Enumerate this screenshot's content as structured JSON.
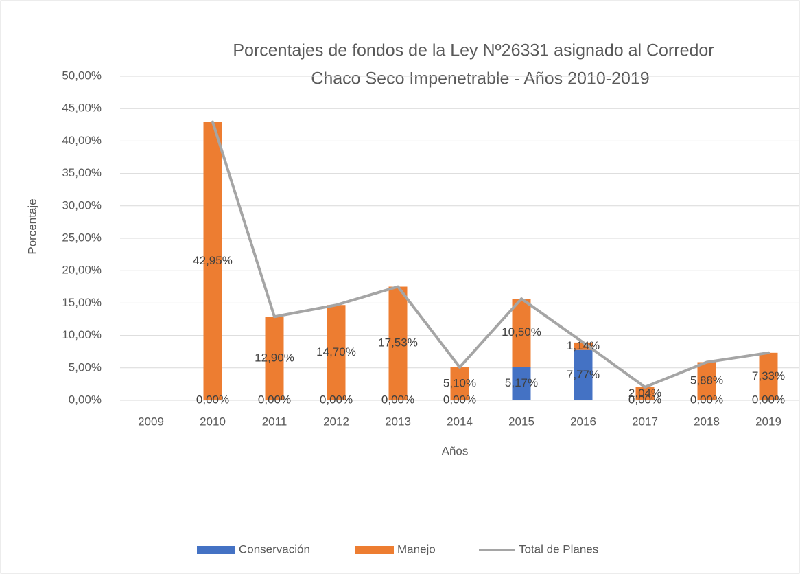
{
  "chart_data": {
    "type": "stacked-bar-line",
    "title": [
      "Porcentajes de fondos de la Ley Nº26331 asignado al Corredor",
      "Chaco Seco Impenetrable -  Años 2010-2019"
    ],
    "x_label": "Años",
    "y_label": "Porcentaje",
    "categories": [
      "2009",
      "2010",
      "2011",
      "2012",
      "2013",
      "2014",
      "2015",
      "2016",
      "2017",
      "2018",
      "2019"
    ],
    "series": [
      {
        "name": "Conservación",
        "kind": "bar",
        "color": "#4472c4",
        "values": [
          null,
          0,
          0,
          0,
          0,
          0,
          5.17,
          7.77,
          0,
          0,
          0
        ],
        "value_labels": [
          null,
          "0,00%",
          "0,00%",
          "0,00%",
          "0,00%",
          "0,00%",
          "5,17%",
          "7,77%",
          "0,00%",
          "0,00%",
          "0,00%"
        ]
      },
      {
        "name": "Manejo",
        "kind": "bar",
        "color": "#ed7d31",
        "values": [
          null,
          42.95,
          12.9,
          14.7,
          17.53,
          5.1,
          10.5,
          1.14,
          2.04,
          5.88,
          7.33
        ],
        "value_labels": [
          null,
          "42,95%",
          "12,90%",
          "14,70%",
          "17,53%",
          "5,10%",
          "10,50%",
          "1,14%",
          "2,04%",
          "5,88%",
          "7,33%"
        ]
      },
      {
        "name": "Total de Planes",
        "kind": "line",
        "color": "#a5a5a5",
        "values": [
          null,
          42.95,
          12.9,
          14.7,
          17.53,
          5.1,
          15.67,
          8.91,
          2.04,
          5.88,
          7.33
        ]
      }
    ],
    "ylim": [
      0,
      50
    ],
    "yticks": [
      {
        "value": 0,
        "label": "0,00%"
      },
      {
        "value": 5,
        "label": "5,00%"
      },
      {
        "value": 10,
        "label": "10,00%"
      },
      {
        "value": 15,
        "label": "15,00%"
      },
      {
        "value": 20,
        "label": "20,00%"
      },
      {
        "value": 25,
        "label": "25,00%"
      },
      {
        "value": 30,
        "label": "30,00%"
      },
      {
        "value": 35,
        "label": "35,00%"
      },
      {
        "value": 40,
        "label": "40,00%"
      },
      {
        "value": 45,
        "label": "45,00%"
      },
      {
        "value": 50,
        "label": "50,00%"
      }
    ],
    "grid": true,
    "legend": "bottom"
  }
}
